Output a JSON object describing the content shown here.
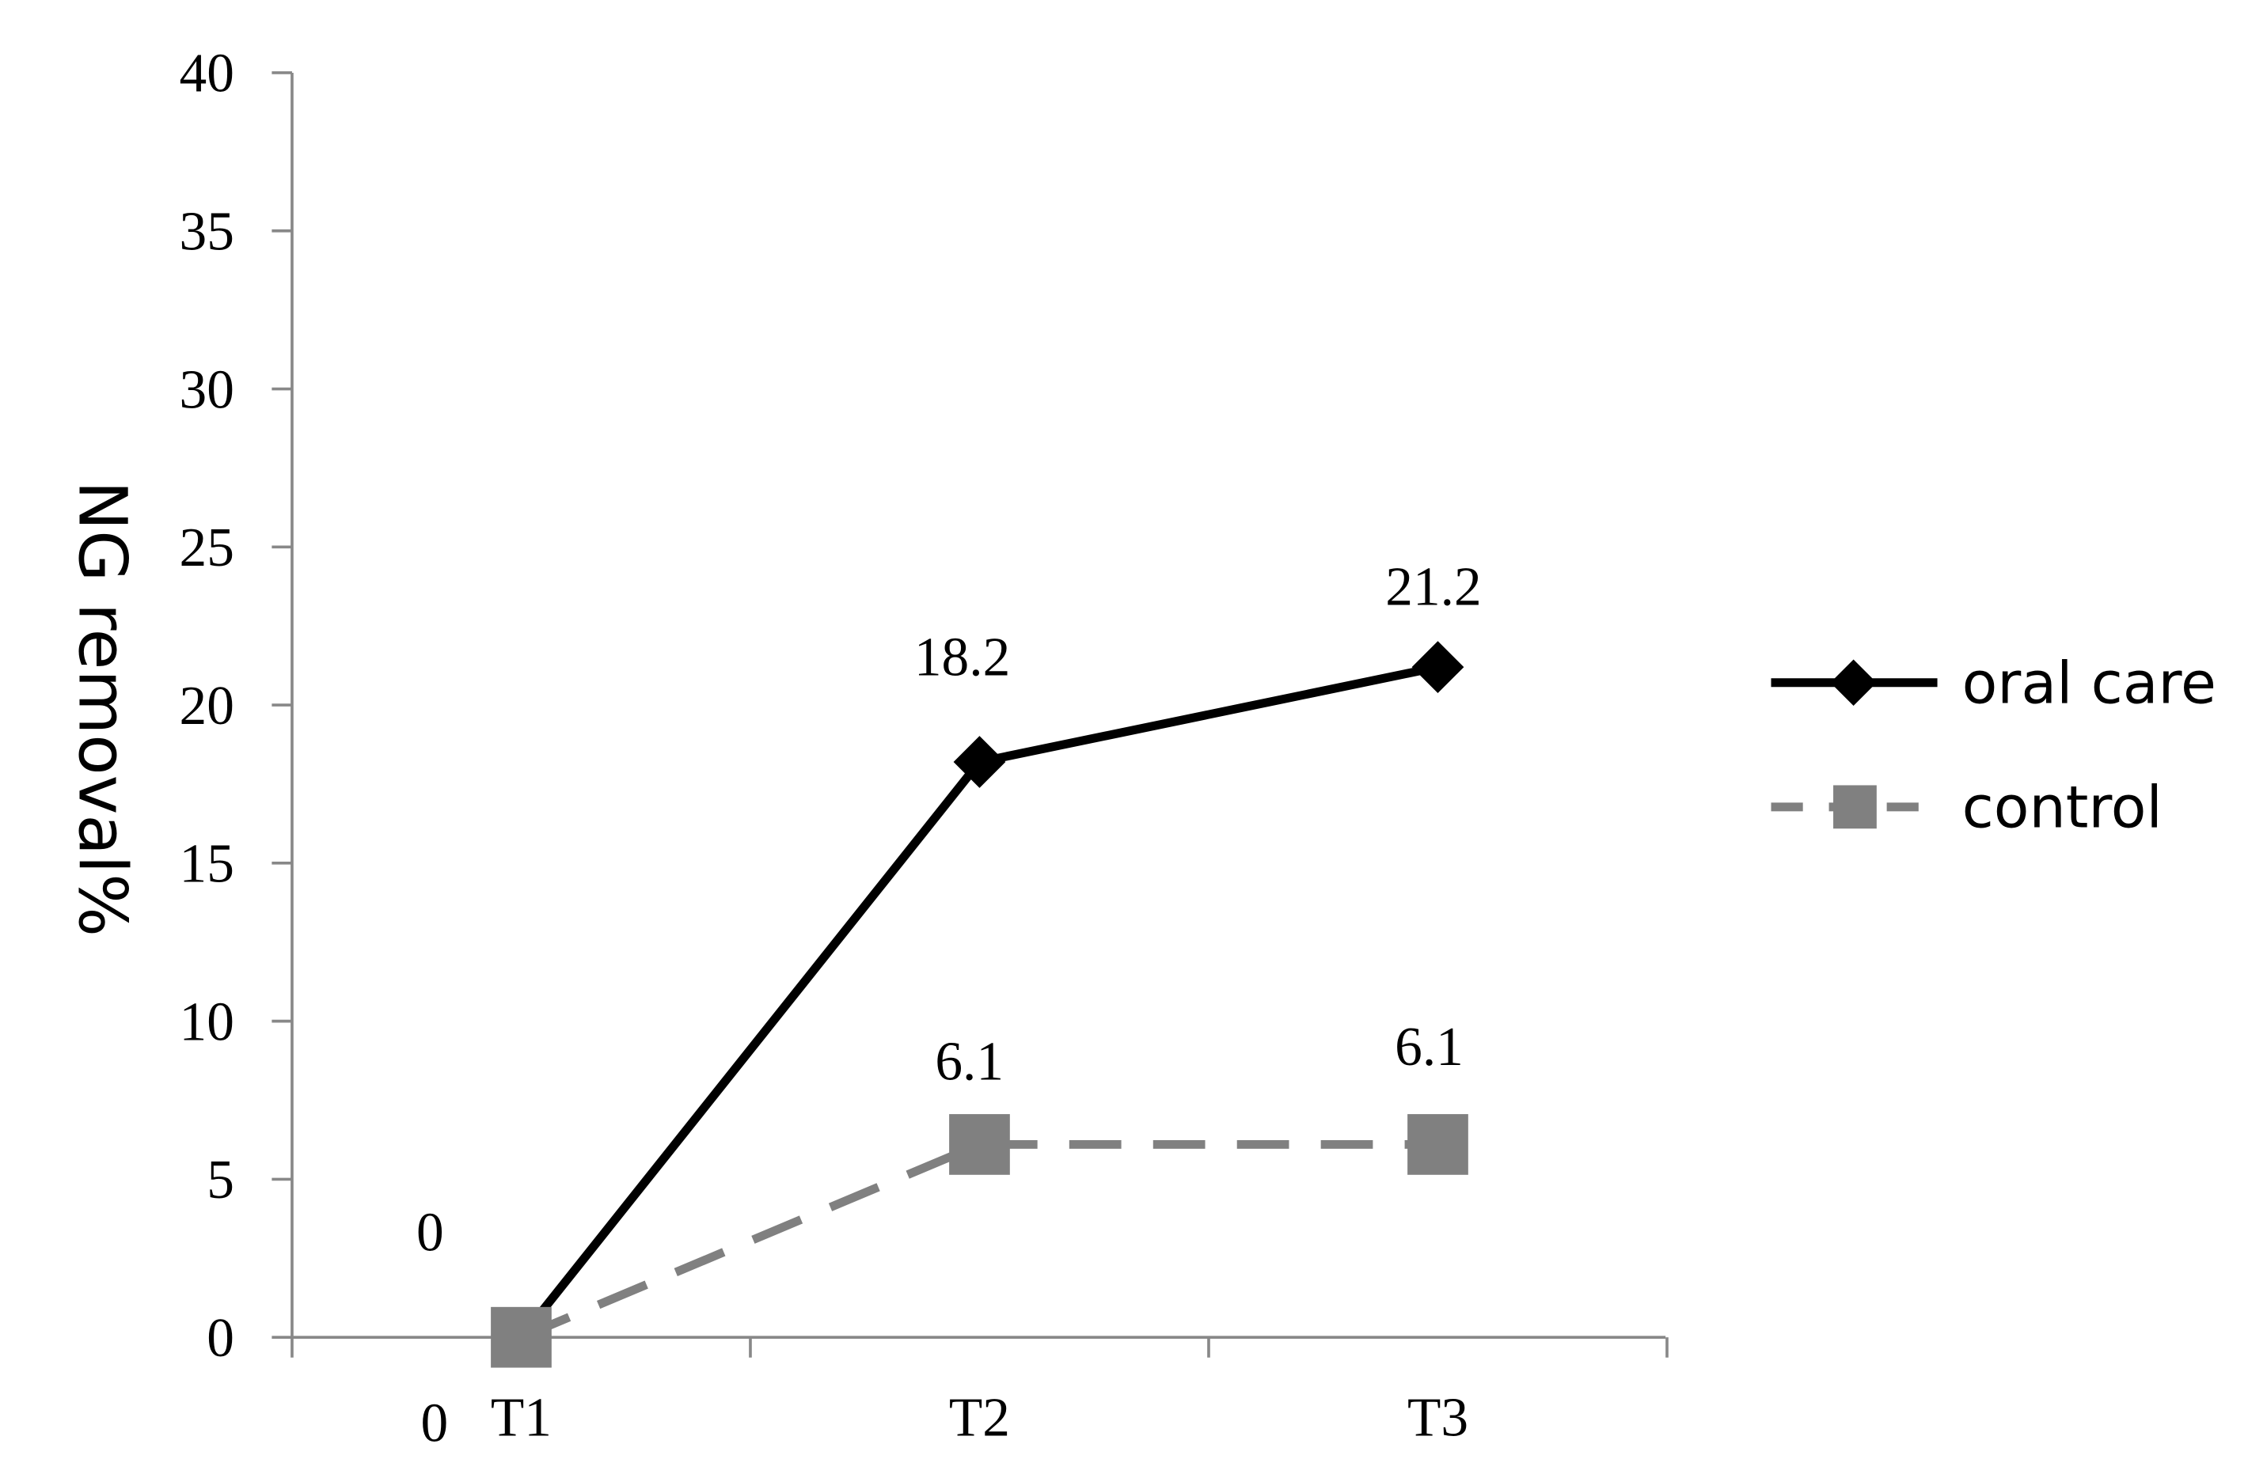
{
  "chart_data": {
    "type": "line",
    "y_label": "NG removal%",
    "categories": [
      "T1",
      "T2",
      "T3"
    ],
    "series": [
      {
        "name": "oral care",
        "color": "#000000",
        "marker": "diamond",
        "dashed": false,
        "values": [
          0,
          18.2,
          21.2
        ]
      },
      {
        "name": "control",
        "color": "#808080",
        "marker": "square",
        "dashed": true,
        "values": [
          0,
          6.1,
          6.1
        ]
      }
    ],
    "ylim": [
      0,
      40
    ],
    "yticks": [
      0,
      5,
      10,
      15,
      20,
      25,
      30,
      35,
      40
    ],
    "grid": false,
    "legend": "right"
  }
}
